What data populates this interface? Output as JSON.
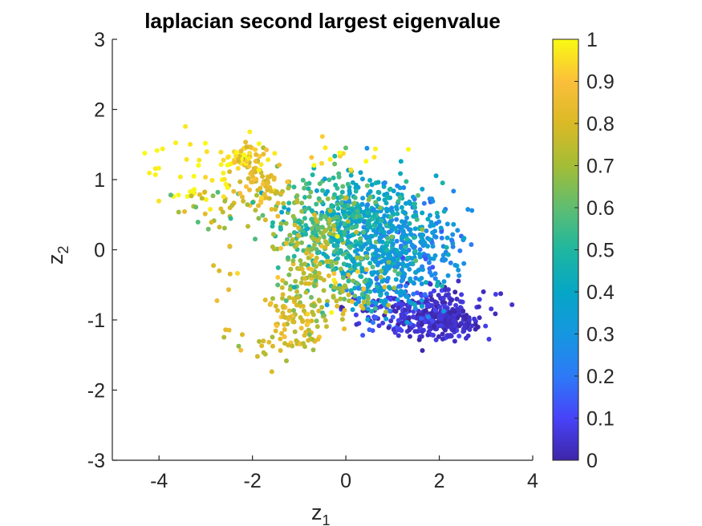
{
  "chart_data": {
    "type": "scatter",
    "title": "laplacian second largest eigenvalue",
    "xlabel_main": "z",
    "xlabel_sub": "1",
    "ylabel_main": "z",
    "ylabel_sub": "2",
    "xlim": [
      -5,
      4
    ],
    "ylim": [
      -3,
      3
    ],
    "xticks": [
      -4,
      -2,
      0,
      2,
      4
    ],
    "yticks": [
      -3,
      -2,
      -1,
      0,
      1,
      2,
      3
    ],
    "xtick_labels": [
      "-4",
      "-2",
      "0",
      "2",
      "4"
    ],
    "ytick_labels": [
      "-3",
      "-2",
      "-1",
      "0",
      "1",
      "2",
      "3"
    ],
    "colorbar": {
      "lim": [
        0,
        1
      ],
      "ticks": [
        0,
        0.1,
        0.2,
        0.3,
        0.4,
        0.5,
        0.6,
        0.7,
        0.8,
        0.9,
        1
      ],
      "tick_labels": [
        "0",
        "0.1",
        "0.2",
        "0.3",
        "0.4",
        "0.5",
        "0.6",
        "0.7",
        "0.8",
        "0.9",
        "1"
      ],
      "colormap": "parula",
      "colormap_stops": [
        "#3e26a8",
        "#4743f8",
        "#2d7af7",
        "#1597df",
        "#06a6c6",
        "#1fb7a0",
        "#5fbd71",
        "#a4bd36",
        "#dab926",
        "#fbbf3a",
        "#f9fa13"
      ]
    },
    "marker_size": 5,
    "clusters": [
      {
        "cx": 2.0,
        "cy": -0.95,
        "sx": 0.45,
        "sy": 0.17,
        "n": 320,
        "v": 0.04,
        "sv": 0.03
      },
      {
        "cx": 0.9,
        "cy": -0.85,
        "sx": 0.5,
        "sy": 0.18,
        "n": 90,
        "v": 0.08,
        "sv": 0.05
      },
      {
        "cx": 1.6,
        "cy": 0.1,
        "sx": 0.5,
        "sy": 0.3,
        "n": 150,
        "v": 0.27,
        "sv": 0.06
      },
      {
        "cx": 0.6,
        "cy": 0.3,
        "sx": 0.6,
        "sy": 0.35,
        "n": 380,
        "v": 0.4,
        "sv": 0.09
      },
      {
        "cx": 1.0,
        "cy": -0.4,
        "sx": 0.5,
        "sy": 0.25,
        "n": 150,
        "v": 0.33,
        "sv": 0.07
      },
      {
        "cx": -0.4,
        "cy": 0.4,
        "sx": 0.6,
        "sy": 0.35,
        "n": 280,
        "v": 0.55,
        "sv": 0.1
      },
      {
        "cx": -0.8,
        "cy": -0.2,
        "sx": 0.35,
        "sy": 0.35,
        "n": 110,
        "v": 0.72,
        "sv": 0.09
      },
      {
        "cx": -1.0,
        "cy": -0.95,
        "sx": 0.35,
        "sy": 0.22,
        "n": 90,
        "v": 0.8,
        "sv": 0.06
      },
      {
        "cx": -1.55,
        "cy": -1.35,
        "sx": 0.35,
        "sy": 0.12,
        "n": 22,
        "v": 0.78,
        "sv": 0.05
      },
      {
        "cx": -1.8,
        "cy": 0.95,
        "sx": 0.3,
        "sy": 0.25,
        "n": 80,
        "v": 0.82,
        "sv": 0.06
      },
      {
        "cx": -2.1,
        "cy": 1.35,
        "sx": 0.25,
        "sy": 0.12,
        "n": 40,
        "v": 0.92,
        "sv": 0.06
      },
      {
        "cx": -3.2,
        "cy": 1.1,
        "sx": 0.6,
        "sy": 0.25,
        "n": 45,
        "v": 0.98,
        "sv": 0.02
      },
      {
        "cx": -2.8,
        "cy": 0.55,
        "sx": 0.4,
        "sy": 0.15,
        "n": 30,
        "v": 0.7,
        "sv": 0.08
      },
      {
        "cx": -2.6,
        "cy": -0.7,
        "sx": 0.3,
        "sy": 0.35,
        "n": 10,
        "v": 0.85,
        "sv": 0.06
      },
      {
        "cx": -0.2,
        "cy": 1.35,
        "sx": 0.7,
        "sy": 0.15,
        "n": 14,
        "v": 0.95,
        "sv": 0.04
      },
      {
        "cx": 0.1,
        "cy": -0.6,
        "sx": 0.5,
        "sy": 0.25,
        "n": 70,
        "v": 0.62,
        "sv": 0.15
      }
    ]
  }
}
